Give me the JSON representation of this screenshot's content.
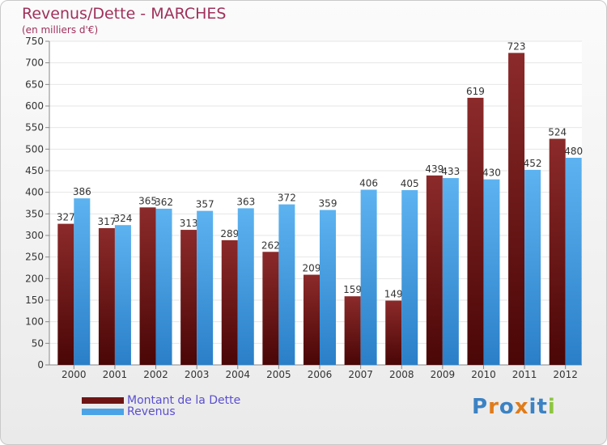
{
  "header": {
    "title": "Revenus/Dette - MARCHES",
    "subtitle": "(en milliers d'€)"
  },
  "chart_data": {
    "type": "bar",
    "title": "Revenus/Dette - MARCHES",
    "subtitle": "(en milliers d'€)",
    "categories": [
      "2000",
      "2001",
      "2002",
      "2003",
      "2004",
      "2005",
      "2006",
      "2007",
      "2008",
      "2009",
      "2010",
      "2011",
      "2012"
    ],
    "series": [
      {
        "name": "Montant de la Dette",
        "color": "#7a1a1a",
        "values": [
          327,
          317,
          365,
          313,
          289,
          262,
          209,
          159,
          149,
          439,
          619,
          723,
          524
        ]
      },
      {
        "name": "Revenus",
        "color": "#4aa3e6",
        "values": [
          386,
          324,
          362,
          357,
          363,
          372,
          359,
          406,
          405,
          433,
          430,
          452,
          480
        ]
      }
    ],
    "ylim": [
      0,
      750
    ],
    "yticks": [
      0,
      50,
      100,
      150,
      200,
      250,
      300,
      350,
      400,
      450,
      500,
      550,
      600,
      650,
      700,
      750
    ],
    "grid": true,
    "legend_position": "bottom-left"
  },
  "legend": {
    "items": [
      {
        "label": "Montant de la Dette",
        "color": "#6e1414"
      },
      {
        "label": "Revenus",
        "color": "#4aa3e6"
      }
    ]
  },
  "brand": {
    "letters": [
      "P",
      "r",
      "o",
      "x",
      "i",
      "t",
      "i"
    ],
    "colors": [
      "#3b82c4",
      "#e07b1a",
      "#3b82c4",
      "#e07b1a",
      "#3b82c4",
      "#3b82c4",
      "#8cc63f"
    ]
  }
}
